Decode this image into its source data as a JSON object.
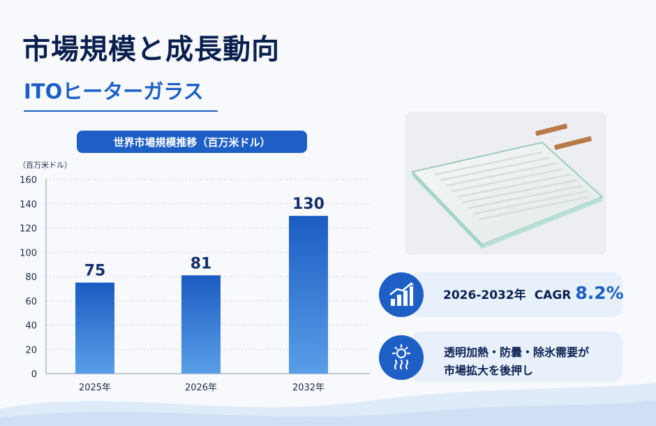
{
  "page": {
    "title": "市場規模と成長動向",
    "subtitle": "ITOヒーターガラス"
  },
  "chart_data": {
    "type": "bar",
    "title": "世界市場規模推移（百万米ドル）",
    "ylabel": "（百万米ドル）",
    "xlabel": "",
    "categories": [
      "2025年",
      "2026年",
      "2032年"
    ],
    "values": [
      75,
      81,
      130
    ],
    "data_labels": [
      "75",
      "81",
      "130"
    ],
    "ylim": [
      0,
      160
    ],
    "yticks": [
      0,
      20,
      40,
      60,
      80,
      100,
      120,
      140,
      160
    ],
    "grid": true,
    "bar_color_top": "#1b5cc2",
    "bar_color_bottom": "#5a9ee8"
  },
  "side": {
    "image_alt": "ITOヒーターガラス",
    "cagr": {
      "period": "2026-2032年",
      "label": "CAGR",
      "value": "8.2%",
      "icon": "growth-chart-icon"
    },
    "drivers": {
      "line1": "透明加熱・防曇・除氷需要が",
      "line2": "市場拡大を後押し",
      "icon": "heat-sun-icon"
    }
  },
  "colors": {
    "accent": "#1e5fc6",
    "title": "#0b1f4d",
    "card": "#e7f0fb"
  }
}
